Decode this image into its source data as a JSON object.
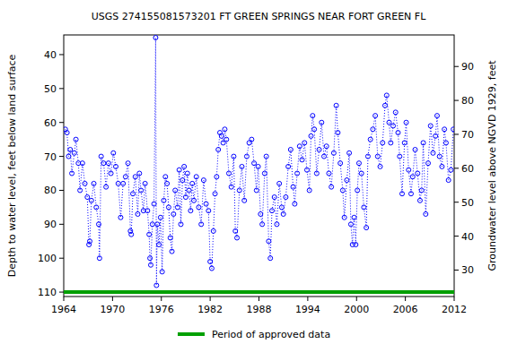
{
  "chart_data": {
    "type": "line",
    "title": "USGS 274155081573201 FT GREEN SPRINGS NEAR FORT GREEN FL",
    "y_label": "Depth to water level, feet below land surface",
    "y2_label": "Groundwater level above NGVD 1929, feet",
    "xlim": [
      1964,
      2012
    ],
    "xticks": [
      1964,
      1970,
      1976,
      1982,
      1988,
      1994,
      2000,
      2006,
      2012
    ],
    "ylim": [
      34.2,
      111.3
    ],
    "yticks": [
      40,
      50,
      60,
      70,
      80,
      90,
      100,
      110
    ],
    "y2lim": [
      99.3,
      22.2
    ],
    "y2ticks": [
      30,
      40,
      50,
      60,
      70,
      80,
      90
    ],
    "grid": false,
    "legend": "bottom",
    "series": [
      {
        "color": "#0000ff",
        "marker": "circle",
        "line_style": "dotted",
        "x": [
          1964.2,
          1964.4,
          1964.6,
          1964.8,
          1965.0,
          1965.3,
          1965.5,
          1965.8,
          1966.0,
          1966.3,
          1966.6,
          1966.9,
          1967.1,
          1967.2,
          1967.4,
          1967.7,
          1968.0,
          1968.3,
          1968.4,
          1968.6,
          1968.9,
          1969.2,
          1969.5,
          1969.8,
          1970.1,
          1970.4,
          1970.7,
          1971.0,
          1971.3,
          1971.6,
          1971.9,
          1972.2,
          1972.3,
          1972.5,
          1972.8,
          1973.1,
          1973.3,
          1973.5,
          1973.8,
          1974.0,
          1974.3,
          1974.5,
          1974.6,
          1974.7,
          1974.9,
          1975.1,
          1975.3,
          1975.4,
          1975.5,
          1975.7,
          1975.9,
          1976.1,
          1976.3,
          1976.5,
          1976.7,
          1976.9,
          1977.1,
          1977.3,
          1977.5,
          1977.7,
          1978.0,
          1978.2,
          1978.4,
          1978.6,
          1978.8,
          1979.0,
          1979.2,
          1979.4,
          1979.6,
          1979.8,
          1980.0,
          1980.3,
          1980.6,
          1980.9,
          1981.2,
          1981.5,
          1981.8,
          1982.0,
          1982.2,
          1982.4,
          1982.6,
          1982.8,
          1983.0,
          1983.2,
          1983.4,
          1983.6,
          1983.8,
          1984.0,
          1984.3,
          1984.6,
          1984.9,
          1985.1,
          1985.3,
          1985.6,
          1985.9,
          1986.2,
          1986.5,
          1986.8,
          1987.1,
          1987.4,
          1987.7,
          1987.9,
          1988.2,
          1988.4,
          1988.7,
          1988.9,
          1989.2,
          1989.4,
          1989.6,
          1989.9,
          1990.2,
          1990.5,
          1990.8,
          1991.0,
          1991.3,
          1991.6,
          1991.9,
          1992.2,
          1992.4,
          1992.7,
          1993.0,
          1993.3,
          1993.6,
          1993.9,
          1994.2,
          1994.4,
          1994.6,
          1994.8,
          1995.1,
          1995.4,
          1995.7,
          1996.0,
          1996.3,
          1996.6,
          1996.9,
          1997.2,
          1997.5,
          1997.7,
          1998.0,
          1998.3,
          1998.5,
          1998.8,
          1999.1,
          1999.3,
          1999.5,
          1999.7,
          1999.9,
          2000.1,
          2000.3,
          2000.6,
          2000.9,
          2001.2,
          2001.4,
          2001.7,
          2002.0,
          2002.3,
          2002.6,
          2002.9,
          2003.2,
          2003.5,
          2003.7,
          2004.0,
          2004.2,
          2004.5,
          2004.8,
          2005.1,
          2005.3,
          2005.6,
          2005.9,
          2006.1,
          2006.4,
          2006.7,
          2006.9,
          2007.2,
          2007.5,
          2007.8,
          2008.0,
          2008.2,
          2008.5,
          2008.8,
          2009.1,
          2009.4,
          2009.7,
          2009.9,
          2010.2,
          2010.5,
          2010.8,
          2011.0,
          2011.3,
          2011.6,
          2011.9
        ],
        "values": [
          62,
          63,
          70,
          68,
          75,
          69,
          65,
          72,
          80,
          72,
          78,
          82,
          96,
          95,
          83,
          78,
          85,
          90,
          100,
          70,
          72,
          79,
          72,
          75,
          69,
          73,
          78,
          88,
          78,
          76,
          72,
          92,
          93,
          81,
          76,
          87,
          75,
          80,
          86,
          78,
          86,
          93,
          100,
          102,
          90,
          84,
          35,
          108,
          90,
          96,
          88,
          104,
          83,
          76,
          78,
          85,
          94,
          98,
          87,
          80,
          85,
          74,
          90,
          77,
          73,
          82,
          75,
          80,
          86,
          78,
          83,
          76,
          85,
          90,
          77,
          84,
          86,
          101,
          103,
          92,
          81,
          76,
          68,
          63,
          64,
          66,
          62,
          65,
          75,
          79,
          70,
          92,
          94,
          80,
          73,
          83,
          70,
          66,
          65,
          72,
          80,
          73,
          87,
          90,
          75,
          70,
          95,
          100,
          86,
          82,
          90,
          78,
          85,
          87,
          82,
          73,
          68,
          79,
          84,
          75,
          67,
          71,
          66,
          74,
          80,
          64,
          58,
          62,
          75,
          68,
          60,
          70,
          67,
          75,
          79,
          69,
          55,
          63,
          72,
          80,
          88,
          77,
          69,
          90,
          96,
          88,
          96,
          80,
          72,
          75,
          85,
          91,
          70,
          65,
          62,
          58,
          70,
          73,
          66,
          55,
          52,
          60,
          66,
          61,
          57,
          63,
          70,
          81,
          66,
          60,
          74,
          81,
          76,
          68,
          75,
          83,
          80,
          66,
          87,
          72,
          61,
          69,
          64,
          58,
          70,
          73,
          62,
          66,
          77,
          74,
          62
        ]
      },
      {
        "name": "Period of approved data",
        "color": "#00a000",
        "marker": "none",
        "line_style": "solid",
        "x": [
          1964,
          2012
        ],
        "values": [
          110,
          110
        ]
      }
    ]
  }
}
